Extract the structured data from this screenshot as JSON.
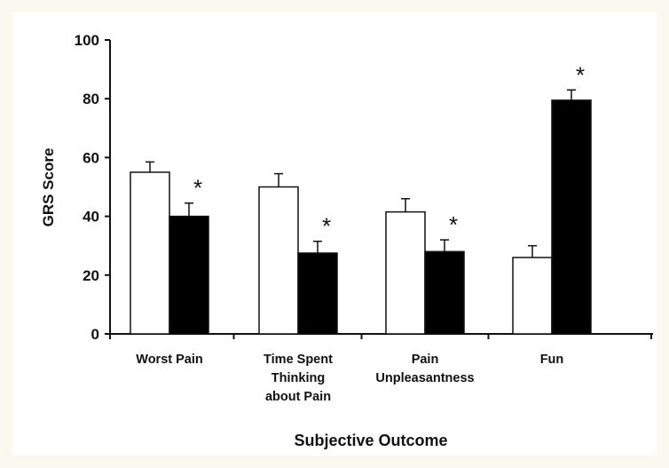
{
  "chart_data": {
    "type": "bar",
    "xlabel": "Subjective Outcome",
    "ylabel": "GRS Score",
    "ylim": [
      0,
      100
    ],
    "yticks": [
      0,
      20,
      40,
      60,
      80,
      100
    ],
    "categories": [
      [
        "Worst Pain"
      ],
      [
        "Time Spent",
        "Thinking",
        "about Pain"
      ],
      [
        "Pain",
        "Unpleasantness"
      ],
      [
        "Fun"
      ]
    ],
    "series": [
      {
        "color": "#ffffff",
        "values": [
          55,
          50,
          41.5,
          26
        ],
        "errors": [
          3.5,
          4.5,
          4.5,
          4
        ]
      },
      {
        "color": "#000000",
        "values": [
          40,
          27.5,
          28,
          79.5
        ],
        "errors": [
          4.5,
          4,
          4,
          3.5
        ]
      }
    ],
    "annotations": [
      {
        "category": 0,
        "series": 1,
        "text": "*"
      },
      {
        "category": 1,
        "series": 1,
        "text": "*"
      },
      {
        "category": 2,
        "series": 1,
        "text": "*"
      },
      {
        "category": 3,
        "series": 1,
        "text": "*"
      }
    ],
    "grid": false,
    "legend": "none"
  }
}
